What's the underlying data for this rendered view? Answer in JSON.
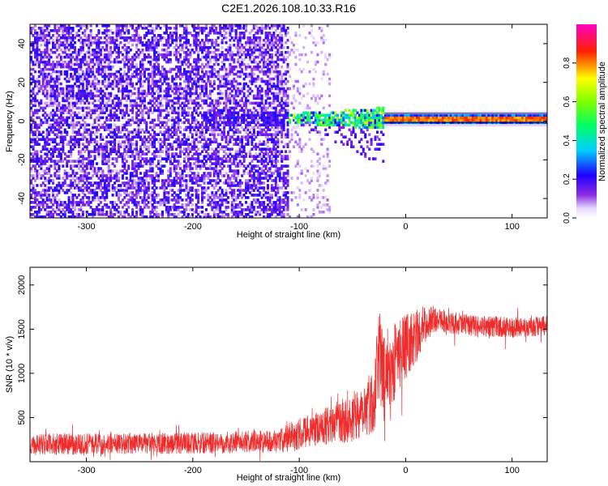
{
  "title": "C2E1.2026.108.10.33.R16",
  "chart_data": [
    {
      "type": "heatmap",
      "title": "C2E1.2026.108.10.33.R16",
      "xlabel": "Height of straight line (km)",
      "ylabel": "Frequency (Hz)",
      "xlim": [
        -353,
        133
      ],
      "ylim": [
        -50,
        50
      ],
      "x_ticks": [
        -300,
        -200,
        -100,
        0,
        100
      ],
      "x_tick_labels": [
        "-300",
        "-200",
        "-100",
        "0",
        "100"
      ],
      "y_ticks": [
        -40,
        -20,
        0,
        20,
        40
      ],
      "y_tick_labels": [
        "-40",
        "-20",
        "0",
        "20",
        "40"
      ],
      "colorbar": {
        "label": "Normalized spectral amplitude",
        "range": [
          0,
          1
        ],
        "ticks": [
          0.0,
          0.2,
          0.4,
          0.6,
          0.8
        ],
        "tick_labels": [
          "0.0",
          "0.2",
          "0.4",
          "0.6",
          "0.8"
        ],
        "colormap": "rainbow (white-violet-blue-cyan-green-yellow-red-magenta)"
      },
      "regions": [
        {
          "x_range": [
            -353,
            -110
          ],
          "description": "broadband noise, amplitude 0.1-0.3 across all frequencies"
        },
        {
          "x_range": [
            -110,
            -20
          ],
          "description": "Doppler line near 0 Hz with spread to -25 Hz, amplitude 0.2-0.7"
        },
        {
          "x_range": [
            -20,
            133
          ],
          "description": "narrow carrier line at ~1.5 Hz, amplitude 0.7-0.9"
        }
      ],
      "carrier_frequency_hz": 1.5
    },
    {
      "type": "line",
      "xlabel": "Height of straight line (km)",
      "ylabel": "SNR (10 * v/v)",
      "xlim": [
        -353,
        133
      ],
      "ylim": [
        0,
        2200
      ],
      "x_ticks": [
        -300,
        -200,
        -100,
        0,
        100
      ],
      "x_tick_labels": [
        "-300",
        "-200",
        "-100",
        "0",
        "100"
      ],
      "y_ticks": [
        500,
        1000,
        1500,
        2000
      ],
      "y_tick_labels": [
        "500",
        "1000",
        "1500",
        "2000"
      ],
      "series_color": "#ee2c2c",
      "envelope": {
        "x": [
          -353,
          -300,
          -200,
          -120,
          -105,
          -80,
          -50,
          -30,
          -25,
          -20,
          -10,
          0,
          10,
          20,
          30,
          40,
          60,
          100,
          133
        ],
        "mean": [
          200,
          200,
          210,
          230,
          300,
          380,
          500,
          700,
          1200,
          1000,
          1150,
          1300,
          1420,
          1580,
          1620,
          1580,
          1540,
          1520,
          1530
        ],
        "noise": [
          120,
          120,
          120,
          130,
          180,
          200,
          280,
          380,
          500,
          550,
          450,
          380,
          300,
          200,
          140,
          130,
          120,
          120,
          120
        ]
      }
    }
  ]
}
